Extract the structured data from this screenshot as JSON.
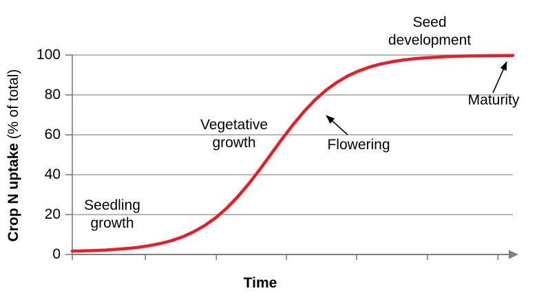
{
  "figure": {
    "background": "#ffffff"
  },
  "chart_data": {
    "type": "line",
    "title": "",
    "xlabel": "Time",
    "ylabel": "Crop N uptake (% of total)",
    "ylabel_bold": "Crop N uptake",
    "ylabel_unit": " (% of total)",
    "x_range": [
      0,
      100
    ],
    "ylim": [
      0,
      100
    ],
    "yticks": [
      0,
      20,
      40,
      60,
      80,
      100
    ],
    "ytick_labels": [
      "0",
      "20",
      "40",
      "60",
      "80",
      "100"
    ],
    "xtick_labels": [],
    "xticks_unlabeled": [
      16.6,
      32.7,
      48.6,
      64.5,
      80.6,
      96.6
    ],
    "grid": "horizontal",
    "legend": "none",
    "line_color": "#ed1c24",
    "axis_color": "#808080",
    "grid_color": "#8c8c8c",
    "arrow_color": "#000000",
    "text_color": "#000000",
    "series": [
      {
        "name": "Crop N uptake (% of total)",
        "x": [
          0,
          2.5,
          5,
          7.5,
          10,
          12.5,
          15,
          17.5,
          20,
          22.5,
          25,
          27.5,
          30,
          32.5,
          35,
          37.5,
          40,
          42.5,
          45,
          47.5,
          50,
          52.5,
          55,
          57.5,
          60,
          62.5,
          65,
          67.5,
          70,
          72.5,
          75,
          77.5,
          80,
          82.5,
          85,
          87.5,
          90,
          92.5,
          95,
          97.5,
          100
        ],
        "y": [
          1.7,
          1.8,
          2.0,
          2.2,
          2.6,
          3.0,
          3.6,
          4.4,
          5.5,
          6.9,
          8.8,
          11.3,
          14.4,
          18.3,
          23.1,
          28.8,
          35.3,
          42.4,
          50.0,
          57.6,
          64.8,
          71.4,
          77.3,
          82.2,
          86.2,
          89.5,
          92.0,
          94.0,
          95.5,
          96.6,
          97.5,
          98.1,
          98.6,
          98.9,
          99.2,
          99.4,
          99.5,
          99.6,
          99.7,
          99.7,
          99.8
        ]
      }
    ],
    "annotations": {
      "seedling": "Seedling\ngrowth",
      "vegetative": "Vegetative\ngrowth",
      "flowering": "Flowering",
      "seed_development": "Seed\ndevelopment",
      "maturity": "Maturity"
    }
  }
}
